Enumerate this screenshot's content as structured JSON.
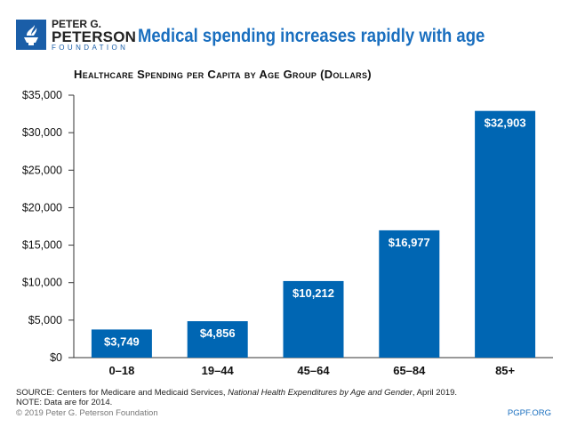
{
  "header": {
    "org_line1": "PETER G.",
    "org_line2": "PETERSON",
    "org_line3": "FOUNDATION",
    "title": "Medical spending increases rapidly with age"
  },
  "chart_data": {
    "type": "bar",
    "title": "Healthcare Spending per Capita by Age Group (Dollars)",
    "categories": [
      "0–18",
      "19–44",
      "45–64",
      "65–84",
      "85+"
    ],
    "values": [
      3749,
      4856,
      10212,
      16977,
      32903
    ],
    "data_labels": [
      "$3,749",
      "$4,856",
      "$10,212",
      "$16,977",
      "$32,903"
    ],
    "ylim": [
      0,
      35000
    ],
    "yticks": [
      0,
      5000,
      10000,
      15000,
      20000,
      25000,
      30000,
      35000
    ],
    "ytick_labels": [
      "$0",
      "$5,000",
      "$10,000",
      "$15,000",
      "$20,000",
      "$25,000",
      "$30,000",
      "$35,000"
    ],
    "xlabel": "",
    "ylabel": "",
    "grid": false,
    "bar_color": "#0066b3"
  },
  "footer": {
    "source_prefix": "SOURCE: Centers for Medicare and Medicaid Services, ",
    "source_title": "National Health Expenditures by Age and Gender",
    "source_suffix": ", April 2019.",
    "note": "NOTE: Data are for 2014.",
    "copyright": "© 2019 Peter G. Peterson Foundation",
    "site": "PGPF.ORG"
  }
}
